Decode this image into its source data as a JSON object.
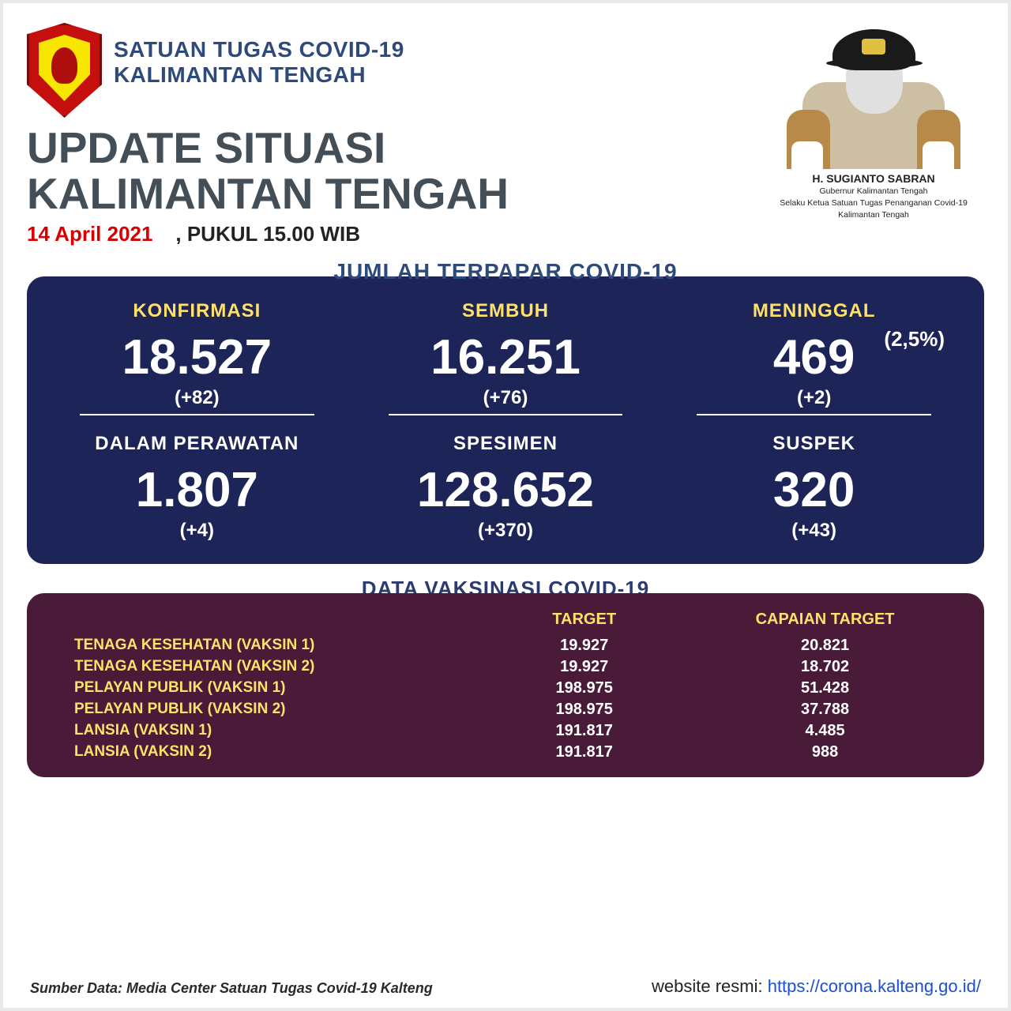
{
  "org": {
    "line1": "SATUAN TUGAS COVID-19",
    "line2": "KALIMANTAN TENGAH"
  },
  "title": {
    "line1": "UPDATE SITUASI",
    "line2": "KALIMANTAN TENGAH"
  },
  "date": {
    "red": "14 April 2021",
    "black": ", PUKUL 15.00 WIB"
  },
  "governor": {
    "name": "H. SUGIANTO SABRAN",
    "sub1": "Gubernur Kalimantan Tengah",
    "sub2": "Selaku Ketua Satuan Tugas Penanganan Covid-19",
    "sub3": "Kalimantan Tengah"
  },
  "stats": {
    "heading": "JUMLAH TERPAPAR COVID-19",
    "box_bg": "#1c2458",
    "cells": [
      {
        "label": "KONFIRMASI",
        "label_color": "yellow",
        "value": "18.527",
        "delta": "(+82)"
      },
      {
        "label": "SEMBUH",
        "label_color": "yellow",
        "value": "16.251",
        "delta": "(+76)"
      },
      {
        "label": "MENINGGAL",
        "label_color": "yellow",
        "value": "469",
        "delta": "(+2)",
        "pct": "(2,5%)"
      },
      {
        "label": "DALAM PERAWATAN",
        "label_color": "white",
        "value": "1.807",
        "delta": "(+4)"
      },
      {
        "label": "SPESIMEN",
        "label_color": "white",
        "value": "128.652",
        "delta": "(+370)"
      },
      {
        "label": "SUSPEK",
        "label_color": "white",
        "value": "320",
        "delta": "(+43)"
      }
    ]
  },
  "vax": {
    "heading": "DATA VAKSINASI COVID-19",
    "box_bg": "#4a1b38",
    "col_target": "TARGET",
    "col_achieve": "CAPAIAN TARGET",
    "rows": [
      {
        "cat": "TENAGA KESEHATAN (VAKSIN 1)",
        "target": "19.927",
        "achieve": "20.821"
      },
      {
        "cat": "TENAGA KESEHATAN (VAKSIN 2)",
        "target": "19.927",
        "achieve": "18.702"
      },
      {
        "cat": "PELAYAN PUBLIK (VAKSIN 1)",
        "target": "198.975",
        "achieve": "51.428"
      },
      {
        "cat": "PELAYAN PUBLIK (VAKSIN 2)",
        "target": "198.975",
        "achieve": "37.788"
      },
      {
        "cat": "LANSIA (VAKSIN 1)",
        "target": "191.817",
        "achieve": "4.485"
      },
      {
        "cat": "LANSIA (VAKSIN 2)",
        "target": "191.817",
        "achieve": "988"
      }
    ]
  },
  "footer": {
    "source": "Sumber Data: Media Center Satuan Tugas Covid-19 Kalteng",
    "site_label": "website resmi: ",
    "site_url": "https://corona.kalteng.go.id/"
  },
  "colors": {
    "navy": "#1c2458",
    "maroon": "#4a1b38",
    "yellow": "#ffe06a",
    "title_grey": "#444e57",
    "org_blue": "#2d4a7a",
    "date_red": "#d60000",
    "link_blue": "#1a4fd6"
  }
}
